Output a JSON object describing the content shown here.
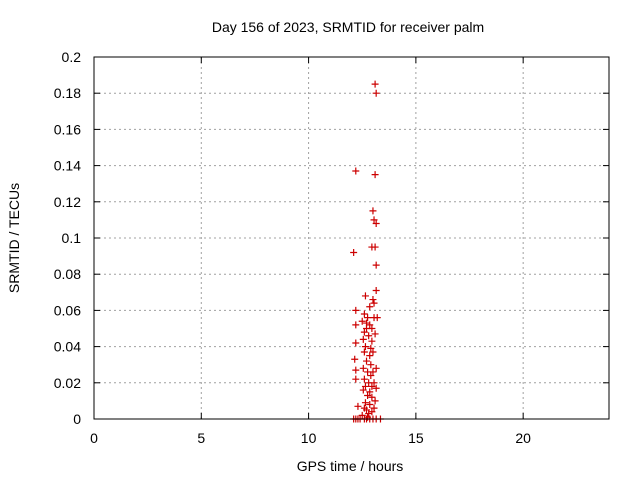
{
  "chart_data": {
    "type": "scatter",
    "title": "Day 156 of 2023, SRMTID for receiver palm",
    "xlabel": "GPS time / hours",
    "ylabel": "SRMTID / TECUs",
    "xlim": [
      0,
      24
    ],
    "ylim": [
      0,
      0.2
    ],
    "xticks": [
      0,
      5,
      10,
      15,
      20
    ],
    "xtick_labels": [
      "0",
      "5",
      "10",
      "15",
      "20"
    ],
    "yticks": [
      0,
      0.02,
      0.04,
      0.06,
      0.08,
      0.1,
      0.12,
      0.14,
      0.16,
      0.18,
      0.2
    ],
    "ytick_labels": [
      "0",
      "0.02",
      "0.04",
      "0.06",
      "0.08",
      "0.1",
      "0.12",
      "0.14",
      "0.16",
      "0.18",
      "0.2"
    ],
    "grid": true,
    "marker": "+",
    "color": "#cc0000",
    "series": [
      {
        "name": "SRMTID",
        "points": [
          [
            13.1,
            0.185
          ],
          [
            13.15,
            0.18
          ],
          [
            12.2,
            0.137
          ],
          [
            13.1,
            0.135
          ],
          [
            13.0,
            0.115
          ],
          [
            13.05,
            0.11
          ],
          [
            13.15,
            0.108
          ],
          [
            12.95,
            0.095
          ],
          [
            13.1,
            0.095
          ],
          [
            12.1,
            0.092
          ],
          [
            13.15,
            0.085
          ],
          [
            13.15,
            0.071
          ],
          [
            12.65,
            0.068
          ],
          [
            13.0,
            0.066
          ],
          [
            13.05,
            0.064
          ],
          [
            12.85,
            0.062
          ],
          [
            12.2,
            0.06
          ],
          [
            12.6,
            0.058
          ],
          [
            12.75,
            0.056
          ],
          [
            13.05,
            0.056
          ],
          [
            13.2,
            0.056
          ],
          [
            12.5,
            0.054
          ],
          [
            12.7,
            0.053
          ],
          [
            12.2,
            0.052
          ],
          [
            12.85,
            0.052
          ],
          [
            12.7,
            0.05
          ],
          [
            12.95,
            0.05
          ],
          [
            12.6,
            0.048
          ],
          [
            13.1,
            0.047
          ],
          [
            12.8,
            0.046
          ],
          [
            12.55,
            0.044
          ],
          [
            12.95,
            0.043
          ],
          [
            12.2,
            0.042
          ],
          [
            12.65,
            0.04
          ],
          [
            12.9,
            0.039
          ],
          [
            12.6,
            0.037
          ],
          [
            13.0,
            0.037
          ],
          [
            12.85,
            0.035
          ],
          [
            12.15,
            0.033
          ],
          [
            12.7,
            0.032
          ],
          [
            12.9,
            0.03
          ],
          [
            12.55,
            0.028
          ],
          [
            13.15,
            0.028
          ],
          [
            12.2,
            0.027
          ],
          [
            12.75,
            0.026
          ],
          [
            13.0,
            0.026
          ],
          [
            12.9,
            0.024
          ],
          [
            12.2,
            0.022
          ],
          [
            12.6,
            0.022
          ],
          [
            12.8,
            0.02
          ],
          [
            13.05,
            0.02
          ],
          [
            12.65,
            0.018
          ],
          [
            12.95,
            0.018
          ],
          [
            13.15,
            0.017
          ],
          [
            12.55,
            0.016
          ],
          [
            12.85,
            0.015
          ],
          [
            12.75,
            0.013
          ],
          [
            12.95,
            0.012
          ],
          [
            13.1,
            0.01
          ],
          [
            12.65,
            0.009
          ],
          [
            12.85,
            0.008
          ],
          [
            12.3,
            0.007
          ],
          [
            12.6,
            0.006
          ],
          [
            13.05,
            0.006
          ],
          [
            12.7,
            0.005
          ],
          [
            12.95,
            0.004
          ],
          [
            12.8,
            0.003
          ],
          [
            12.5,
            0.002
          ],
          [
            12.75,
            0.001
          ],
          [
            12.1,
            0.0
          ],
          [
            12.2,
            0.0
          ],
          [
            12.3,
            0.0
          ],
          [
            12.4,
            0.0
          ],
          [
            12.6,
            0.0
          ],
          [
            12.7,
            0.0
          ],
          [
            12.85,
            0.0
          ],
          [
            13.0,
            0.0
          ],
          [
            13.15,
            0.0
          ],
          [
            13.35,
            0.0
          ]
        ]
      }
    ]
  }
}
